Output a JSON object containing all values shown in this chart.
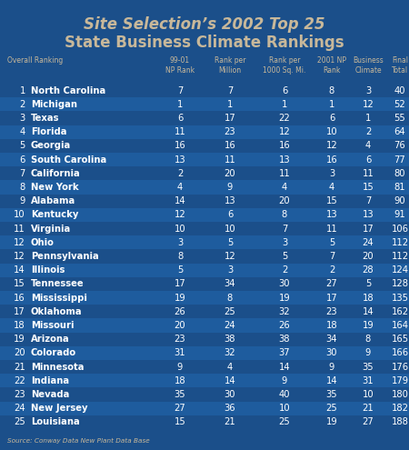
{
  "title_italic": "Site Selection’s 2002 Top 25",
  "title_bold": "State Business Climate Rankings",
  "bg_color": "#1b4f8a",
  "bg_color_dark": "#174475",
  "bg_color_alt": "#1e5c9e",
  "header_color": "#c8b89a",
  "text_color": "#ffffff",
  "source_text": "Source: Conway Data New Plant Data Base",
  "rows": [
    [
      1,
      "North Carolina",
      7,
      7,
      6,
      8,
      3,
      40
    ],
    [
      2,
      "Michigan",
      1,
      1,
      1,
      1,
      12,
      52
    ],
    [
      3,
      "Texas",
      6,
      17,
      22,
      6,
      1,
      55
    ],
    [
      4,
      "Florida",
      11,
      23,
      12,
      10,
      2,
      64
    ],
    [
      5,
      "Georgia",
      16,
      16,
      16,
      12,
      4,
      76
    ],
    [
      6,
      "South Carolina",
      13,
      11,
      13,
      16,
      6,
      77
    ],
    [
      7,
      "California",
      2,
      20,
      11,
      3,
      11,
      80
    ],
    [
      8,
      "New York",
      4,
      9,
      4,
      4,
      15,
      81
    ],
    [
      9,
      "Alabama",
      14,
      13,
      20,
      15,
      7,
      90
    ],
    [
      10,
      "Kentucky",
      12,
      6,
      8,
      13,
      13,
      91
    ],
    [
      11,
      "Virginia",
      10,
      10,
      7,
      11,
      17,
      106
    ],
    [
      12,
      "Ohio",
      3,
      5,
      3,
      5,
      24,
      112
    ],
    [
      12,
      "Pennsylvania",
      8,
      12,
      5,
      7,
      20,
      112
    ],
    [
      14,
      "Illinois",
      5,
      3,
      2,
      2,
      28,
      124
    ],
    [
      15,
      "Tennessee",
      17,
      34,
      30,
      27,
      5,
      128
    ],
    [
      16,
      "Mississippi",
      19,
      8,
      19,
      17,
      18,
      135
    ],
    [
      17,
      "Oklahoma",
      26,
      25,
      32,
      23,
      14,
      162
    ],
    [
      18,
      "Missouri",
      20,
      24,
      26,
      18,
      19,
      164
    ],
    [
      19,
      "Arizona",
      23,
      38,
      38,
      34,
      8,
      165
    ],
    [
      20,
      "Colorado",
      31,
      32,
      37,
      30,
      9,
      166
    ],
    [
      21,
      "Minnesota",
      9,
      4,
      14,
      9,
      35,
      176
    ],
    [
      22,
      "Indiana",
      18,
      14,
      9,
      14,
      31,
      179
    ],
    [
      23,
      "Nevada",
      35,
      30,
      40,
      35,
      10,
      180
    ],
    [
      24,
      "New Jersey",
      27,
      36,
      10,
      25,
      21,
      182
    ],
    [
      25,
      "Louisiana",
      15,
      21,
      25,
      19,
      27,
      188
    ]
  ]
}
